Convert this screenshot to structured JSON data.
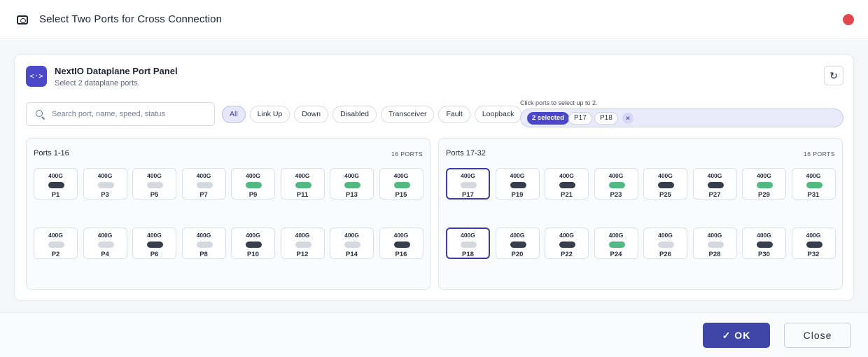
{
  "dialog": {
    "title": "Select Two Ports for Cross Connection",
    "header_icon": "port-icon",
    "close_dot_color": "#e0484e"
  },
  "panel": {
    "logo_text": "<·>",
    "logo_icon": "code-arrows-icon",
    "title": "NextIO Dataplane Port Panel",
    "subtitle": "Select 2 dataplane ports.",
    "refresh_icon": "↻",
    "accent_color": "#4b47c9"
  },
  "search": {
    "placeholder": "Search port, name, speed, status",
    "value": ""
  },
  "filters": [
    {
      "label": "All",
      "active": true
    },
    {
      "label": "Link Up",
      "active": false
    },
    {
      "label": "Down",
      "active": false
    },
    {
      "label": "Disabled",
      "active": false
    },
    {
      "label": "Transceiver",
      "active": false
    },
    {
      "label": "Fault",
      "active": false
    },
    {
      "label": "Loopback",
      "active": false
    }
  ],
  "selection": {
    "hint": "Click ports to select up to 2.",
    "count_label": "2 selected",
    "tags": [
      "P17",
      "P18"
    ],
    "clear_icon": "✕"
  },
  "status_colors": {
    "up": "#53b983",
    "down": "#363d4c",
    "disabled": "#d5d8df"
  },
  "groups": [
    {
      "title": "Ports 1-16",
      "count": "16 PORTS",
      "rows": [
        [
          {
            "speed": "400G",
            "name": "P1",
            "status": "down"
          },
          {
            "speed": "400G",
            "name": "P3",
            "status": "disabled"
          },
          {
            "speed": "400G",
            "name": "P5",
            "status": "disabled"
          },
          {
            "speed": "400G",
            "name": "P7",
            "status": "disabled"
          },
          {
            "speed": "400G",
            "name": "P9",
            "status": "up"
          },
          {
            "speed": "400G",
            "name": "P11",
            "status": "up"
          },
          {
            "speed": "400G",
            "name": "P13",
            "status": "up"
          },
          {
            "speed": "400G",
            "name": "P15",
            "status": "up"
          }
        ],
        [
          {
            "speed": "400G",
            "name": "P2",
            "status": "disabled"
          },
          {
            "speed": "400G",
            "name": "P4",
            "status": "disabled"
          },
          {
            "speed": "400G",
            "name": "P6",
            "status": "down"
          },
          {
            "speed": "400G",
            "name": "P8",
            "status": "disabled"
          },
          {
            "speed": "400G",
            "name": "P10",
            "status": "down"
          },
          {
            "speed": "400G",
            "name": "P12",
            "status": "disabled"
          },
          {
            "speed": "400G",
            "name": "P14",
            "status": "disabled"
          },
          {
            "speed": "400G",
            "name": "P16",
            "status": "down"
          }
        ]
      ]
    },
    {
      "title": "Ports 17-32",
      "count": "16 PORTS",
      "rows": [
        [
          {
            "speed": "400G",
            "name": "P17",
            "status": "disabled",
            "selected": true
          },
          {
            "speed": "400G",
            "name": "P19",
            "status": "down"
          },
          {
            "speed": "400G",
            "name": "P21",
            "status": "down"
          },
          {
            "speed": "400G",
            "name": "P23",
            "status": "up"
          },
          {
            "speed": "400G",
            "name": "P25",
            "status": "down"
          },
          {
            "speed": "400G",
            "name": "P27",
            "status": "down"
          },
          {
            "speed": "400G",
            "name": "P29",
            "status": "up"
          },
          {
            "speed": "400G",
            "name": "P31",
            "status": "up"
          }
        ],
        [
          {
            "speed": "400G",
            "name": "P18",
            "status": "disabled",
            "selected": true
          },
          {
            "speed": "400G",
            "name": "P20",
            "status": "down"
          },
          {
            "speed": "400G",
            "name": "P22",
            "status": "down"
          },
          {
            "speed": "400G",
            "name": "P24",
            "status": "up"
          },
          {
            "speed": "400G",
            "name": "P26",
            "status": "disabled"
          },
          {
            "speed": "400G",
            "name": "P28",
            "status": "disabled"
          },
          {
            "speed": "400G",
            "name": "P30",
            "status": "down"
          },
          {
            "speed": "400G",
            "name": "P32",
            "status": "down"
          }
        ]
      ]
    }
  ],
  "footer": {
    "ok_label": "✓ OK",
    "close_label": "Close",
    "ok_color": "#3e46a8"
  }
}
